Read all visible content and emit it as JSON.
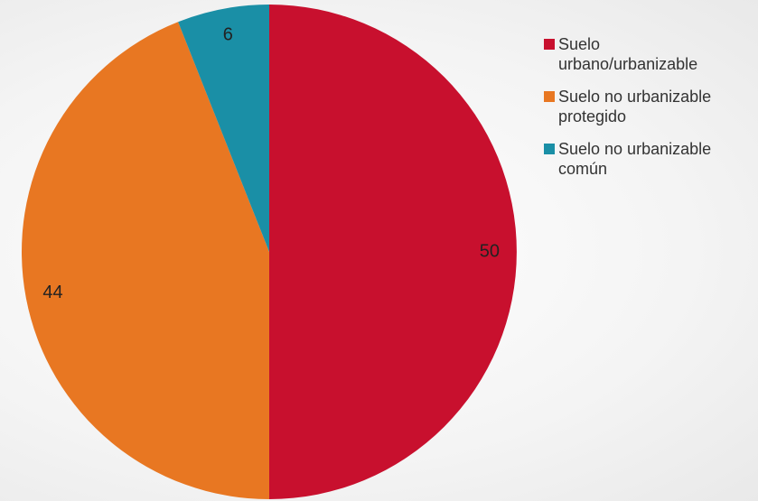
{
  "chart_data": {
    "type": "pie",
    "categories": [
      "Suelo urbano/urbanizable",
      "Suelo no urbanizable protegido",
      "Suelo no urbanizable común"
    ],
    "values": [
      50,
      44,
      6
    ],
    "colors": [
      "#c8102e",
      "#e87722",
      "#1a8fa6"
    ],
    "legend": "right"
  }
}
